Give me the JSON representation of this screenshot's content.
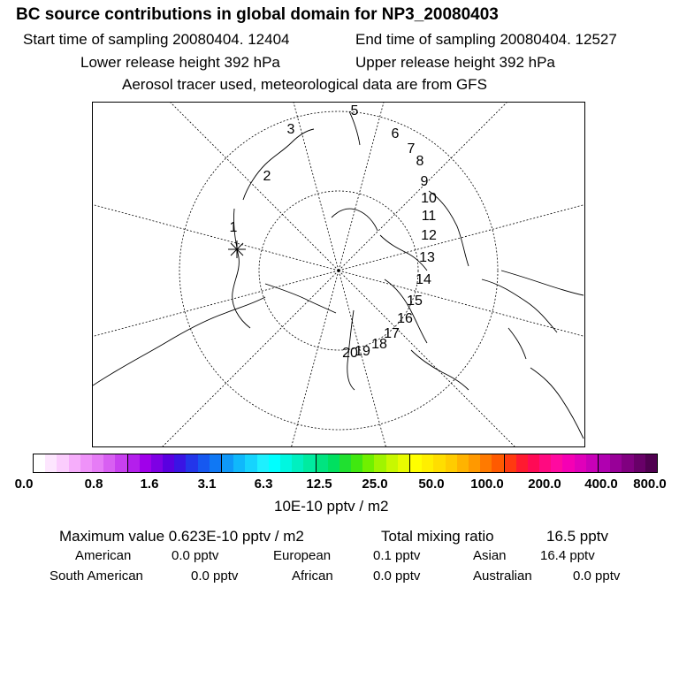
{
  "header": {
    "title": "BC  source contributions in global domain for NP3_20080403",
    "start_label": "Start time of sampling 20080404. 12404",
    "end_label": "End time of sampling 20080404. 12527",
    "lower_label": "Lower release height  392 hPa",
    "upper_label": "Upper release height  392 hPa",
    "note": "Aerosol tracer used, meteorological data are from GFS"
  },
  "map": {
    "trajectory_labels": [
      "1",
      "2",
      "3",
      "5",
      "6",
      "7",
      "8",
      "9",
      "10",
      "11",
      "12",
      "13",
      "14",
      "15",
      "16",
      "17",
      "18",
      "19",
      "20"
    ],
    "line_color": "#000000"
  },
  "colorbar": {
    "colors": [
      "#ffffff",
      "#fde6fe",
      "#fbcdfd",
      "#f6aefb",
      "#ef92f9",
      "#e67cf6",
      "#d85ff2",
      "#c840ef",
      "#b41fec",
      "#a000ea",
      "#7e00e4",
      "#5a00e0",
      "#3a14e4",
      "#2336ea",
      "#1658f0",
      "#1078f4",
      "#0f98f8",
      "#10b8fb",
      "#16d4fd",
      "#1ef0fe",
      "#00ffff",
      "#00f7e0",
      "#00f0c0",
      "#00eba0",
      "#00e480",
      "#00e060",
      "#20e030",
      "#40e810",
      "#70f000",
      "#a0f400",
      "#c8f800",
      "#e8fb00",
      "#ffff00",
      "#ffef00",
      "#ffde00",
      "#ffcc00",
      "#ffb300",
      "#ff9900",
      "#ff7a00",
      "#ff5a00",
      "#ff3a10",
      "#ff1a30",
      "#ff0a55",
      "#ff0a80",
      "#ff0aa0",
      "#f500b4",
      "#e000ba",
      "#c800b8",
      "#b000b0",
      "#980098",
      "#800080",
      "#680068",
      "#500050"
    ],
    "separator_indices": [
      7,
      15,
      23,
      31,
      39,
      47
    ],
    "tick_labels": [
      "0.0",
      "0.8",
      "1.6",
      "3.1",
      "6.3",
      "12.5",
      "25.0",
      "50.0",
      "100.0",
      "200.0",
      "400.0",
      "800.0"
    ],
    "units": "10E-10 pptv / m2"
  },
  "stats": {
    "max_label": "Maximum value  0.623E-10 pptv / m2",
    "total_label": "Total mixing ratio",
    "total_value": "16.5 pptv",
    "american_label": "American",
    "american_value": "0.0 pptv",
    "european_label": "European",
    "european_value": "0.1 pptv",
    "asian_label": "Asian",
    "asian_value": "16.4 pptv",
    "south_american_label": "South American",
    "south_american_value": "0.0 pptv",
    "african_label": "African",
    "african_value": "0.0 pptv",
    "australian_label": "Australian",
    "australian_value": "0.0 pptv"
  }
}
